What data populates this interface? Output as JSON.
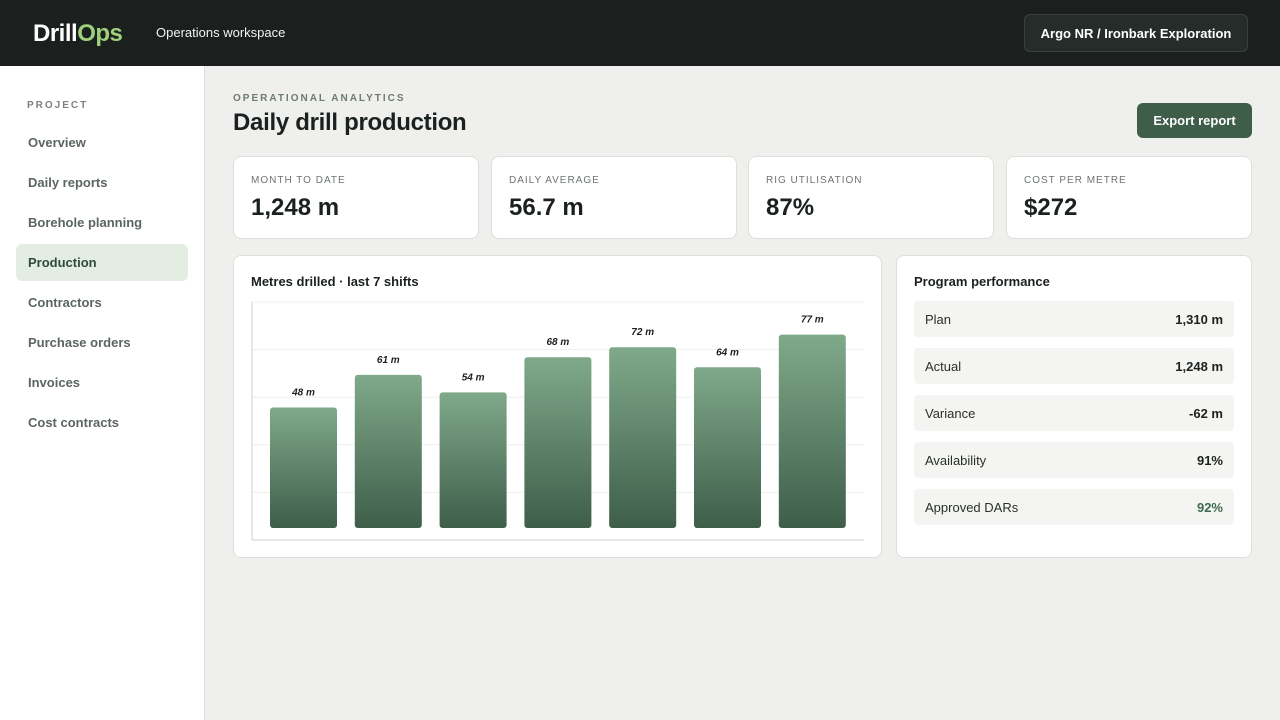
{
  "app": {
    "logo_part1": "Drill",
    "logo_part2": "Ops",
    "workspace": "Operations workspace",
    "account": "Argo NR / Ironbark Exploration"
  },
  "sidebar": {
    "section": "PROJECT",
    "items": [
      {
        "label": "Overview"
      },
      {
        "label": "Daily reports"
      },
      {
        "label": "Borehole planning"
      },
      {
        "label": "Production",
        "active": true
      },
      {
        "label": "Contractors"
      },
      {
        "label": "Purchase orders"
      },
      {
        "label": "Invoices"
      },
      {
        "label": "Cost contracts"
      }
    ]
  },
  "header": {
    "eyebrow": "OPERATIONAL ANALYTICS",
    "title": "Daily drill production",
    "export_label": "Export report"
  },
  "kpis": [
    {
      "label": "MONTH TO DATE",
      "value": "1,248 m"
    },
    {
      "label": "DAILY AVERAGE",
      "value": "56.7 m"
    },
    {
      "label": "RIG UTILISATION",
      "value": "87%"
    },
    {
      "label": "COST PER METRE",
      "value": "$272"
    }
  ],
  "chart_data": {
    "type": "bar",
    "title": "Metres drilled · last 7 shifts",
    "values": [
      48,
      61,
      54,
      68,
      72,
      64,
      77
    ],
    "data_labels": [
      "48 m",
      "61 m",
      "54 m",
      "68 m",
      "72 m",
      "64 m",
      "77 m"
    ],
    "ylim": [
      0,
      90
    ],
    "grid": true,
    "colors": {
      "bar_top": "#80a98a",
      "bar_bottom": "#3e5e4a"
    }
  },
  "performance": {
    "title": "Program performance",
    "rows": [
      {
        "label": "Plan",
        "value": "1,310 m"
      },
      {
        "label": "Actual",
        "value": "1,248 m"
      },
      {
        "label": "Variance",
        "value": "-62 m"
      },
      {
        "label": "Availability",
        "value": "91%"
      },
      {
        "label": "Approved DARs",
        "value": "92%",
        "accent": true
      }
    ]
  }
}
